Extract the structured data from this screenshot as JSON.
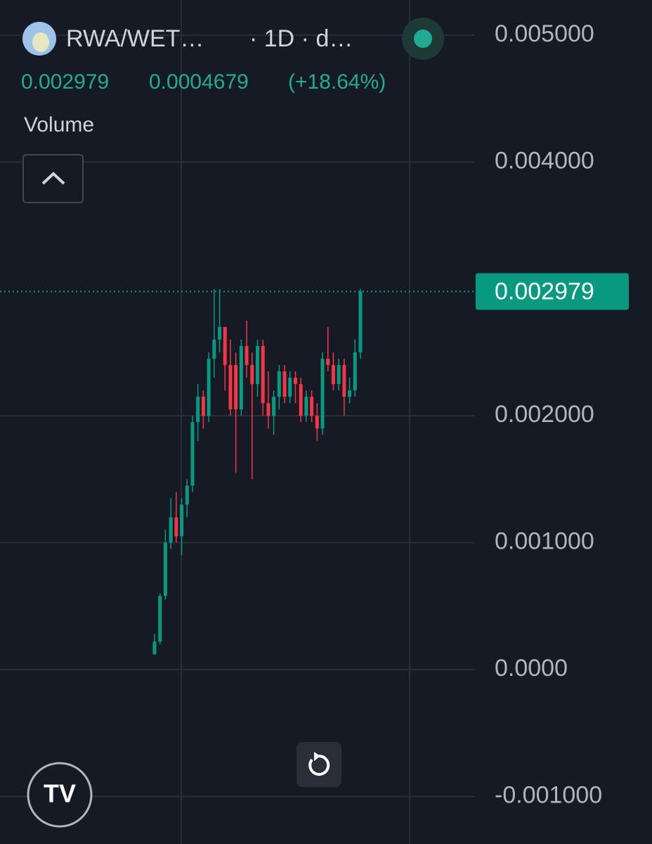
{
  "header": {
    "symbol": "RWA/WET…",
    "interval": "· 1D · d…",
    "last": "0.002979",
    "change": "0.0004679",
    "change_pct": "(+18.64%)",
    "pane": "Volume"
  },
  "chart_data": {
    "type": "candlestick",
    "up_color": "#089981",
    "down_color": "#f23645",
    "grid": true,
    "ylim": [
      -0.001375,
      0.005277
    ],
    "yticks": [
      {
        "value": 0.005,
        "label": "0.005000"
      },
      {
        "value": 0.004,
        "label": "0.004000"
      },
      {
        "value": 0.002,
        "label": "0.002000"
      },
      {
        "value": 0.001,
        "label": "0.001000"
      },
      {
        "value": 0,
        "label": "0.0000"
      },
      {
        "value": -0.001,
        "label": "-0.001000"
      }
    ],
    "open": [
      0.00012,
      0.00022,
      0.00058,
      0.001,
      0.0012,
      0.00105,
      0.0013,
      0.00145,
      0.00195,
      0.00215,
      0.002,
      0.00245,
      0.0026,
      0.0027,
      0.0024,
      0.0024,
      0.00205,
      0.00255,
      0.0024,
      0.00225,
      0.00255,
      0.0021,
      0.002,
      0.00215,
      0.00235,
      0.00215,
      0.0023,
      0.00225,
      0.002,
      0.00215,
      0.002,
      0.0019,
      0.00245,
      0.0024,
      0.00225,
      0.0024,
      0.00215,
      0.0022,
      0.0025
    ],
    "high": [
      0.00028,
      0.0006,
      0.0011,
      0.00135,
      0.0014,
      0.00135,
      0.0015,
      0.002,
      0.00225,
      0.0022,
      0.0025,
      0.003,
      0.003,
      0.0027,
      0.0026,
      0.0025,
      0.0026,
      0.00275,
      0.0025,
      0.0026,
      0.0026,
      0.00235,
      0.0022,
      0.0024,
      0.0024,
      0.00235,
      0.00235,
      0.0023,
      0.0022,
      0.0022,
      0.0021,
      0.0025,
      0.0027,
      0.0025,
      0.00245,
      0.00245,
      0.0023,
      0.0026,
      0.003
    ],
    "low": [
      0.00012,
      0.0002,
      0.00055,
      0.00095,
      0.001,
      0.0009,
      0.0012,
      0.0014,
      0.0018,
      0.0019,
      0.00195,
      0.0023,
      0.0025,
      0.0022,
      0.002,
      0.00155,
      0.002,
      0.0023,
      0.0015,
      0.00215,
      0.002,
      0.0019,
      0.00185,
      0.00205,
      0.0021,
      0.0021,
      0.0021,
      0.00195,
      0.00195,
      0.00195,
      0.0018,
      0.00185,
      0.00235,
      0.0022,
      0.0022,
      0.002,
      0.0021,
      0.00215,
      0.00245
    ],
    "close": [
      0.00022,
      0.00058,
      0.001,
      0.0012,
      0.00105,
      0.0013,
      0.00145,
      0.00195,
      0.00215,
      0.002,
      0.00245,
      0.0026,
      0.0027,
      0.0024,
      0.00205,
      0.00205,
      0.00255,
      0.0024,
      0.00225,
      0.00255,
      0.0021,
      0.002,
      0.00215,
      0.00235,
      0.00215,
      0.0023,
      0.00225,
      0.002,
      0.00215,
      0.002,
      0.0019,
      0.00245,
      0.0024,
      0.00225,
      0.0024,
      0.00215,
      0.0022,
      0.0025,
      0.002979
    ]
  }
}
